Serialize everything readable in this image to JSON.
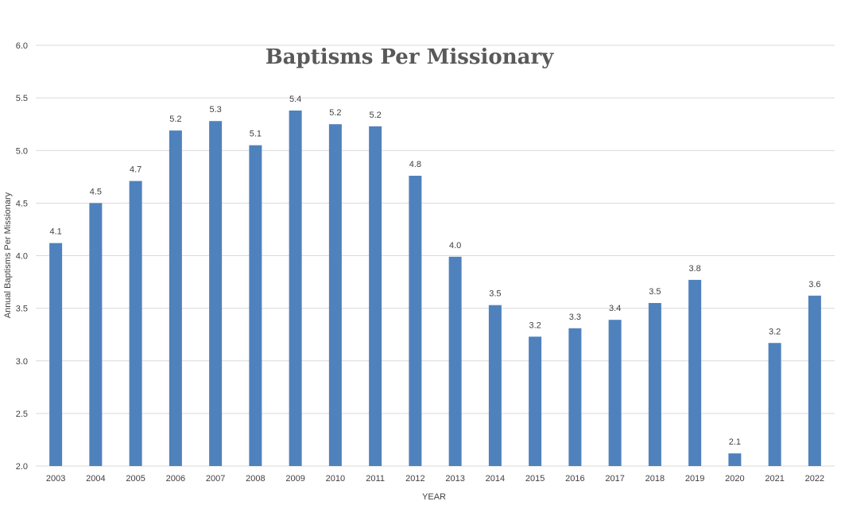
{
  "chart_data": {
    "type": "bar",
    "title": "Baptisms Per Missionary",
    "xlabel": "YEAR",
    "ylabel": "Annual Baptisms Per Missionary",
    "ylim": [
      2.0,
      6.0
    ],
    "yticks": [
      "2.0",
      "2.5",
      "3.0",
      "3.5",
      "4.0",
      "4.5",
      "5.0",
      "5.5",
      "6.0"
    ],
    "grid": true,
    "bar_color": "#4f81bd",
    "categories": [
      "2003",
      "2004",
      "2005",
      "2006",
      "2007",
      "2008",
      "2009",
      "2010",
      "2011",
      "2012",
      "2013",
      "2014",
      "2015",
      "2016",
      "2017",
      "2018",
      "2019",
      "2020",
      "2021",
      "2022"
    ],
    "values": [
      4.12,
      4.5,
      4.71,
      5.19,
      5.28,
      5.05,
      5.38,
      5.25,
      5.23,
      4.76,
      3.99,
      3.53,
      3.23,
      3.31,
      3.39,
      3.55,
      3.77,
      2.12,
      3.17,
      3.62
    ],
    "data_labels": [
      "4.1",
      "4.5",
      "4.7",
      "5.2",
      "5.3",
      "5.1",
      "5.4",
      "5.2",
      "5.2",
      "4.8",
      "4.0",
      "3.5",
      "3.2",
      "3.3",
      "3.4",
      "3.5",
      "3.8",
      "2.1",
      "3.2",
      "3.6"
    ]
  }
}
